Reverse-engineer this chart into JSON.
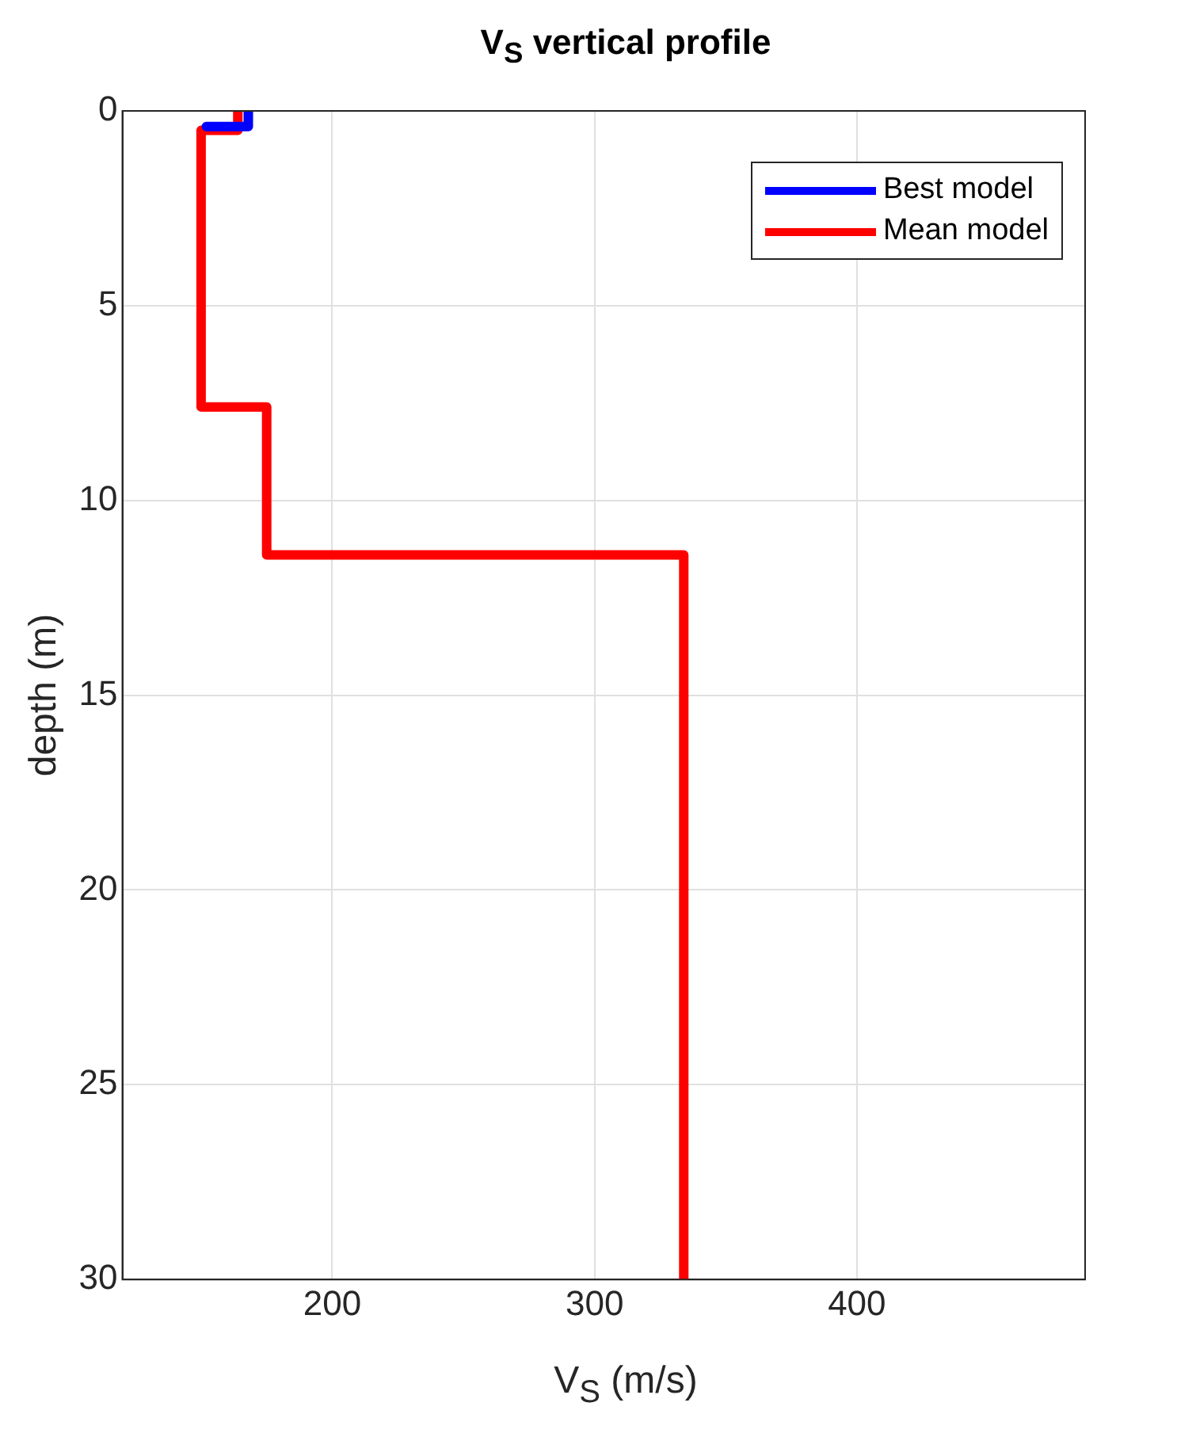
{
  "chart_data": {
    "type": "line",
    "title": "V$_{S}$ vertical profile",
    "xlabel": "V$_{S}$ (m/s)",
    "ylabel": "depth (m)",
    "xlim": [
      120,
      487
    ],
    "xticks": [
      200,
      300,
      400
    ],
    "ylim": [
      30,
      0
    ],
    "yticks": [
      0,
      5,
      10,
      15,
      20,
      25,
      30
    ],
    "grid": true,
    "legend": "top right",
    "marker": "none",
    "line_style": "solid",
    "series": [
      {
        "name": "Best model",
        "color": "#0000ff",
        "x": [
          168,
          168,
          152
        ],
        "values": [
          0,
          0.4,
          0.4
        ]
      },
      {
        "name": "Mean model",
        "color": "#ff0000",
        "x": [
          164,
          164,
          150,
          150,
          175,
          175,
          334,
          334
        ],
        "values": [
          0,
          0.5,
          0.5,
          7.6,
          7.6,
          11.4,
          11.4,
          30
        ]
      }
    ]
  }
}
